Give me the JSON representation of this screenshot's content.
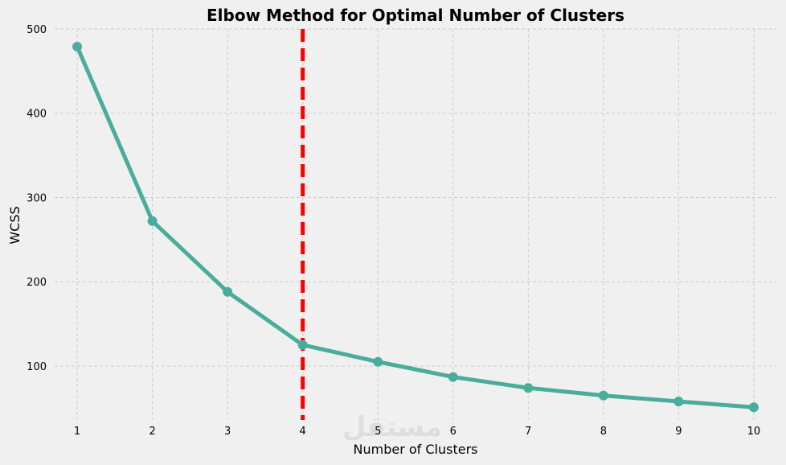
{
  "chart_data": {
    "type": "line",
    "title": "Elbow Method for Optimal Number of Clusters",
    "xlabel": "Number of Clusters",
    "ylabel": "WCSS",
    "x": [
      1,
      2,
      3,
      4,
      5,
      6,
      7,
      8,
      9,
      10
    ],
    "x_tick_labels": [
      "1",
      "2",
      "3",
      "4",
      "5",
      "6",
      "7",
      "8",
      "9",
      "10"
    ],
    "y_ticks": [
      100,
      200,
      300,
      400,
      500
    ],
    "y_tick_labels": [
      "100",
      "200",
      "300",
      "400",
      "500"
    ],
    "series": [
      {
        "values": [
          479,
          272,
          188,
          125,
          105,
          87,
          74,
          65,
          58,
          51
        ]
      }
    ],
    "xlim": [
      0.7,
      10.3
    ],
    "ylim": [
      36,
      500
    ],
    "grid": true,
    "reference_line": {
      "axis": "x",
      "value": 4,
      "style": "dashed"
    },
    "colors": {
      "line": "#4aac9c",
      "reference": "#ff0000",
      "background": "#f0f0f0",
      "grid": "#cccccc"
    }
  },
  "watermark": "مستقل"
}
